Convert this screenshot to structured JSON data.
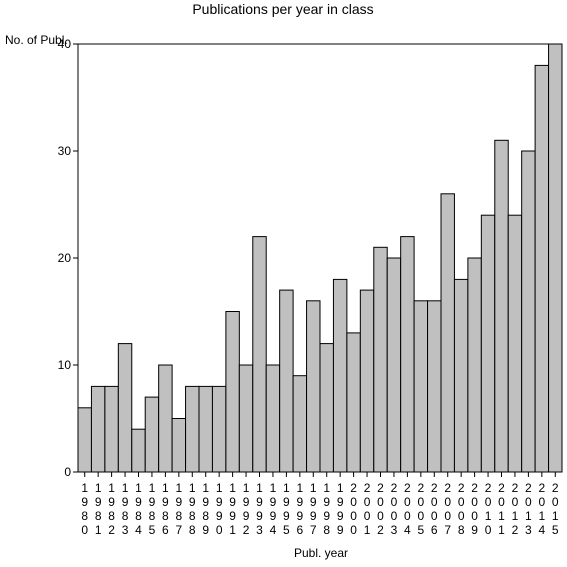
{
  "chart_data": {
    "type": "bar",
    "title": "Publications per year in class",
    "ylabel": "No. of Publ.",
    "xlabel": "Publ. year",
    "ylim": [
      0,
      40
    ],
    "yticks": [
      0,
      10,
      20,
      30,
      40
    ],
    "grid": false,
    "categories": [
      "1980",
      "1981",
      "1982",
      "1983",
      "1984",
      "1985",
      "1986",
      "1987",
      "1988",
      "1989",
      "1990",
      "1991",
      "1992",
      "1993",
      "1994",
      "1995",
      "1996",
      "1997",
      "1998",
      "1999",
      "2000",
      "2001",
      "2002",
      "2003",
      "2004",
      "2005",
      "2006",
      "2007",
      "2008",
      "2009",
      "2010",
      "2011",
      "2012",
      "2013",
      "2014",
      "2015"
    ],
    "values": [
      6,
      8,
      8,
      12,
      4,
      7,
      10,
      5,
      8,
      8,
      8,
      15,
      10,
      22,
      10,
      17,
      9,
      16,
      12,
      18,
      13,
      17,
      21,
      20,
      22,
      16,
      16,
      26,
      18,
      20,
      24,
      31,
      24,
      30,
      38,
      40
    ],
    "bar_color": "#c0c0c0"
  }
}
